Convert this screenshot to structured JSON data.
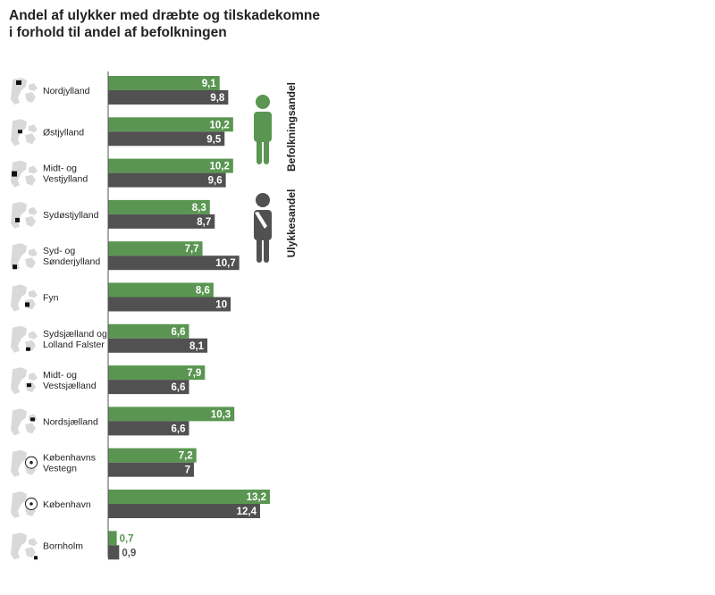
{
  "title_line1": "Andel af ulykker med dræbte og tilskadekomne",
  "title_line2": "i forhold til andel af befolkningen",
  "colors": {
    "population": "#5a9652",
    "accidents": "#515151",
    "axis": "#555555",
    "map": "#d9d9d9",
    "highlight": "#111111"
  },
  "chart_data": {
    "type": "bar",
    "orientation": "horizontal",
    "title": "Andel af ulykker med dræbte og tilskadekomne i forhold til andel af befolkningen",
    "categories": [
      {
        "lines": [
          "Nordjylland"
        ],
        "icon": "map-denmark-icon"
      },
      {
        "lines": [
          "Østjylland"
        ],
        "icon": "map-denmark-icon"
      },
      {
        "lines": [
          "Midt- og",
          "Vestjylland"
        ],
        "icon": "map-denmark-icon"
      },
      {
        "lines": [
          "Sydøstjylland"
        ],
        "icon": "map-denmark-icon"
      },
      {
        "lines": [
          "Syd- og",
          "Sønderjylland"
        ],
        "icon": "map-denmark-icon"
      },
      {
        "lines": [
          "Fyn"
        ],
        "icon": "map-denmark-icon"
      },
      {
        "lines": [
          "Sydsjælland  og",
          "Lolland Falster"
        ],
        "icon": "map-denmark-icon"
      },
      {
        "lines": [
          "Midt- og",
          "Vestsjælland"
        ],
        "icon": "map-denmark-icon"
      },
      {
        "lines": [
          "Nordsjælland"
        ],
        "icon": "map-denmark-icon"
      },
      {
        "lines": [
          "Københavns",
          "Vestegn"
        ],
        "icon": "map-denmark-circle-icon"
      },
      {
        "lines": [
          "København"
        ],
        "icon": "map-denmark-circle-icon"
      },
      {
        "lines": [
          "Bornholm"
        ],
        "icon": "map-denmark-icon"
      }
    ],
    "series": [
      {
        "name": "Befolkningsandel",
        "values": [
          9.1,
          10.2,
          10.2,
          8.3,
          7.7,
          8.6,
          6.6,
          7.9,
          10.3,
          7.2,
          13.2,
          0.7
        ],
        "labels": [
          "9,1",
          "10,2",
          "10,2",
          "8,3",
          "7,7",
          "8,6",
          "6,6",
          "7,9",
          "10,3",
          "7,2",
          "13,2",
          "0,7"
        ],
        "icon": "person-icon"
      },
      {
        "name": "Ulykkesandel",
        "values": [
          9.8,
          9.5,
          9.6,
          8.7,
          10.7,
          10,
          8.1,
          6.6,
          6.6,
          7,
          12.4,
          0.9
        ],
        "labels": [
          "9,8",
          "9,5",
          "9,6",
          "8,7",
          "10,7",
          "10",
          "8,1",
          "6,6",
          "6,6",
          "7",
          "12,4",
          "0,9"
        ],
        "icon": "injured-person-icon"
      }
    ],
    "xlim": [
      0,
      13.2
    ],
    "grid": false,
    "legend": "right, vertical text beside person icons"
  }
}
